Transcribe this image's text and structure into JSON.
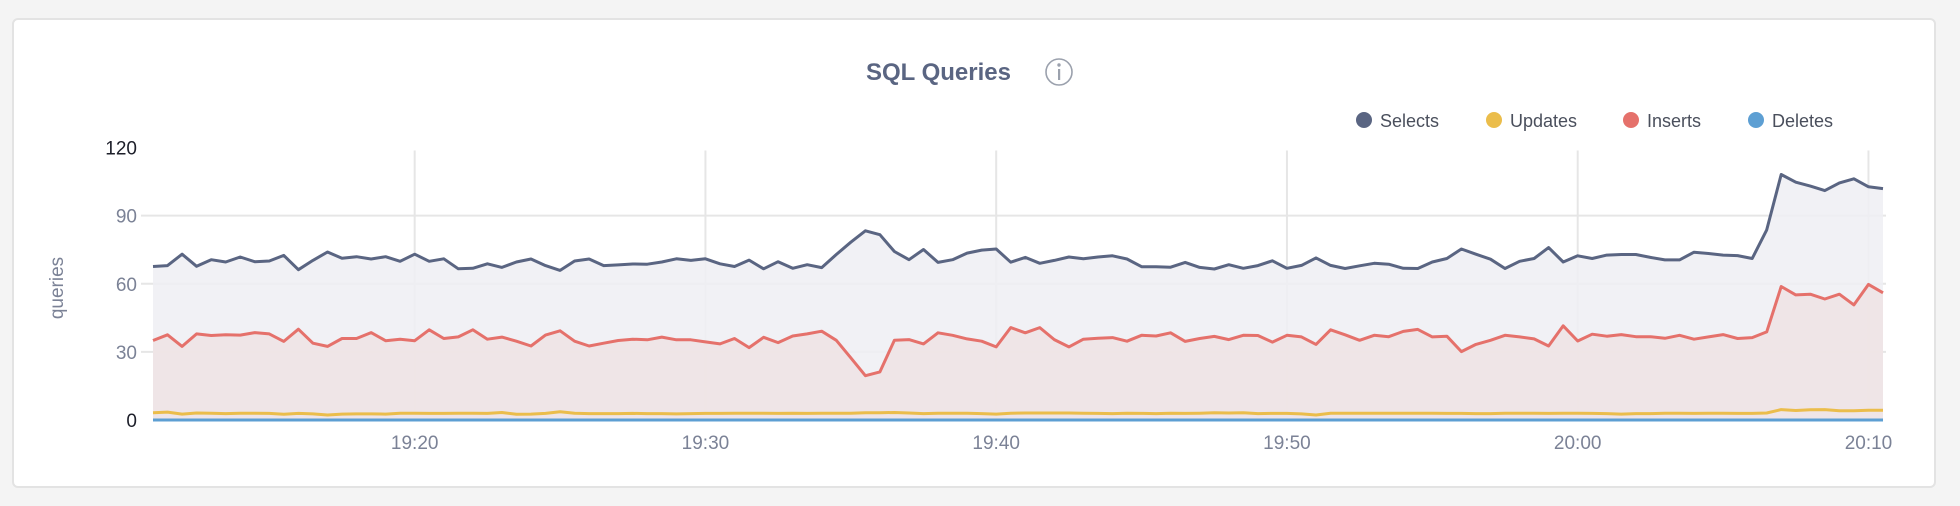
{
  "chart_data": {
    "type": "line",
    "title": "SQL Queries",
    "info_icon": "info-circle-icon",
    "ylabel": "queries",
    "xlabel": "",
    "ylim": [
      0,
      120
    ],
    "yticks": [
      "0",
      "30",
      "60",
      "90",
      "120"
    ],
    "xticks": [
      "19:20",
      "19:30",
      "19:40",
      "19:50",
      "20:00",
      "20:10"
    ],
    "x_start": "19:11:00",
    "x_end": "20:10:30",
    "x_interval_seconds": 30,
    "grid": true,
    "legend": "top-right",
    "series": [
      {
        "name": "Selects",
        "color": "#5a6582",
        "fill": "#eeeff3",
        "values": [
          67.6,
          68,
          73,
          67.7,
          70.6,
          69.6,
          71.8,
          69.7,
          70,
          72.5,
          66.2,
          70.3,
          74,
          71.2,
          71.9,
          70.9,
          71.9,
          69.9,
          73,
          69.9,
          71,
          66.6,
          66.8,
          68.8,
          67.2,
          69.6,
          70.9,
          68,
          65.9,
          70,
          70.9,
          68,
          68.3,
          68.7,
          68.6,
          69.6,
          71,
          70.3,
          71.0,
          68.8,
          67.6,
          70.4,
          66.6,
          69.7,
          66.8,
          68.4,
          67.1,
          72.9,
          78.3,
          83.3,
          81.6,
          74.2,
          70.6,
          75.1,
          69.4,
          70.6,
          73.5,
          74.8,
          75.3,
          69.5,
          71.6,
          69,
          70.3,
          71.8,
          71,
          71.8,
          72.3,
          70.9,
          67.5,
          67.5,
          67.3,
          69.4,
          67.2,
          66.5,
          68.4,
          66.8,
          68,
          70.1,
          66.8,
          68.1,
          71.4,
          68.1,
          66.7,
          67.9,
          69,
          68.6,
          66.8,
          66.7,
          69.6,
          71.1,
          75.3,
          73,
          70.8,
          66.7,
          69.9,
          71.1,
          75.9,
          69.6,
          72.3,
          71.1,
          72.6,
          72.9,
          72.9,
          71.6,
          70.5,
          70.5,
          73.9,
          73.3,
          72.6,
          72.4,
          71.1,
          83.7,
          108.1,
          104.7,
          103,
          101,
          104.4,
          106.2,
          102.7,
          101.9
        ]
      },
      {
        "name": "Updates",
        "color": "#ebbd4b",
        "fill": "none",
        "values": [
          3.2,
          3.5,
          2.6,
          3.1,
          3,
          2.8,
          3,
          3,
          2.9,
          2.5,
          2.9,
          2.7,
          2.2,
          2.6,
          2.7,
          2.7,
          2.6,
          3,
          3,
          2.9,
          2.9,
          3,
          3,
          2.9,
          3.3,
          2.5,
          2.6,
          2.9,
          3.6,
          3,
          2.8,
          2.8,
          2.8,
          2.9,
          2.8,
          2.8,
          2.7,
          2.8,
          2.9,
          2.9,
          3,
          3,
          3,
          2.9,
          3,
          2.9,
          3,
          3,
          3,
          3.2,
          3.2,
          3.3,
          3.1,
          2.8,
          3,
          3,
          3,
          2.8,
          2.6,
          3,
          3.1,
          3.1,
          3.1,
          3.1,
          3,
          2.9,
          2.8,
          3,
          2.9,
          2.8,
          3,
          2.9,
          3,
          3.2,
          3.1,
          3.2,
          2.8,
          2.9,
          2.9,
          2.7,
          2.2,
          3,
          3,
          3,
          3,
          3,
          3,
          3,
          3,
          2.9,
          2.9,
          2.8,
          2.8,
          3,
          3,
          3,
          2.9,
          3,
          3,
          2.9,
          2.8,
          2.6,
          2.8,
          2.8,
          3,
          3,
          2.9,
          3,
          3,
          2.9,
          2.9,
          3.1,
          4.6,
          4.2,
          4.5,
          4.6,
          4.1,
          4.1,
          4.3,
          4.3
        ]
      },
      {
        "name": "Inserts",
        "color": "#e5716b",
        "fill": "#eee3e4",
        "values": [
          35,
          37.5,
          32.4,
          37.9,
          37.2,
          37.5,
          37.4,
          38.5,
          37.9,
          34.6,
          40,
          33.8,
          32.4,
          35.9,
          35.9,
          38.5,
          34.9,
          35.6,
          34.9,
          39.7,
          35.9,
          36.6,
          39.7,
          35.6,
          36.5,
          34.7,
          32.6,
          37.4,
          39.3,
          34.7,
          32.6,
          33.8,
          35,
          35.6,
          35.3,
          36.5,
          35.3,
          35.3,
          34.4,
          33.5,
          35.9,
          31.9,
          36.4,
          34.1,
          37,
          37.9,
          39.1,
          35.1,
          27.4,
          19.5,
          21.2,
          35.1,
          35.4,
          33.5,
          38.4,
          37.3,
          35.7,
          34.7,
          32.2,
          40.7,
          38.4,
          40.7,
          35.4,
          32.2,
          35.6,
          36,
          36.3,
          34.7,
          37.3,
          37,
          38.4,
          34.6,
          35.9,
          36.8,
          35.4,
          37.3,
          37.2,
          34.3,
          37.3,
          36.6,
          33.3,
          39.7,
          37.5,
          35.1,
          37.3,
          36.7,
          39,
          39.9,
          36.6,
          36.9,
          30.1,
          33.3,
          35.1,
          37.3,
          36.6,
          35.7,
          32.6,
          41.5,
          34.8,
          37.8,
          36.9,
          37.6,
          36.7,
          36.7,
          36,
          37.3,
          35.6,
          36.6,
          37.6,
          35.9,
          36.3,
          38.8,
          58.8,
          55.1,
          55.4,
          53.3,
          55.4,
          50.7,
          59.7,
          56
        ]
      },
      {
        "name": "Deletes",
        "color": "#5d9fd3",
        "fill": "none",
        "values": [
          0,
          0,
          0,
          0,
          0,
          0,
          0,
          0,
          0,
          0,
          0,
          0,
          0,
          0,
          0,
          0,
          0,
          0,
          0,
          0,
          0,
          0,
          0,
          0,
          0,
          0,
          0,
          0,
          0,
          0,
          0,
          0,
          0,
          0,
          0,
          0,
          0,
          0,
          0,
          0,
          0,
          0,
          0,
          0,
          0,
          0,
          0,
          0,
          0,
          0,
          0,
          0,
          0,
          0,
          0,
          0,
          0,
          0,
          0,
          0,
          0,
          0,
          0,
          0,
          0,
          0,
          0,
          0,
          0,
          0,
          0,
          0,
          0,
          0,
          0,
          0,
          0,
          0,
          0,
          0,
          0,
          0,
          0,
          0,
          0,
          0,
          0,
          0,
          0,
          0,
          0,
          0,
          0,
          0,
          0,
          0,
          0,
          0,
          0,
          0,
          0,
          0,
          0,
          0,
          0,
          0,
          0,
          0,
          0,
          0,
          0,
          0,
          0,
          0,
          0,
          0,
          0,
          0,
          0,
          0
        ]
      }
    ]
  }
}
